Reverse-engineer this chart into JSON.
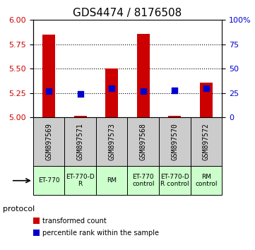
{
  "title": "GDS4474 / 8176508",
  "samples": [
    "GSM897569",
    "GSM897571",
    "GSM897573",
    "GSM897568",
    "GSM897570",
    "GSM897572"
  ],
  "red_bar_top": [
    5.85,
    5.02,
    5.5,
    5.86,
    5.02,
    5.36
  ],
  "red_bar_bottom": 5.0,
  "blue_y": [
    5.27,
    5.24,
    5.3,
    5.27,
    5.28,
    5.3
  ],
  "ylim_left": [
    5.0,
    6.0
  ],
  "yticks_left": [
    5.0,
    5.25,
    5.5,
    5.75,
    6.0
  ],
  "yticks_right": [
    0,
    25,
    50,
    75,
    100
  ],
  "ylabel_left_color": "#cc0000",
  "ylabel_right_color": "#0000cc",
  "protocol_groups": [
    {
      "label": "ET-770",
      "color": "#ccffcc",
      "span": [
        0,
        1
      ]
    },
    {
      "label": "ET-770-D\nR",
      "color": "#ccffcc",
      "span": [
        1,
        2
      ]
    },
    {
      "label": "RM",
      "color": "#ccffcc",
      "span": [
        2,
        3
      ]
    },
    {
      "label": "ET-770\ncontrol",
      "color": "#ccffcc",
      "span": [
        3,
        4
      ]
    },
    {
      "label": "ET-770-D\nR control",
      "color": "#ccffcc",
      "span": [
        4,
        5
      ]
    },
    {
      "label": "RM\ncontrol",
      "color": "#ccffcc",
      "span": [
        5,
        6
      ]
    }
  ],
  "protocol_label": "protocol",
  "legend_red_label": "transformed count",
  "legend_blue_label": "percentile rank within the sample",
  "bar_color": "#cc0000",
  "dot_color": "#0000cc",
  "grid_color": "#000000",
  "sample_area_color": "#cccccc",
  "bar_width": 0.4,
  "dot_size": 30
}
